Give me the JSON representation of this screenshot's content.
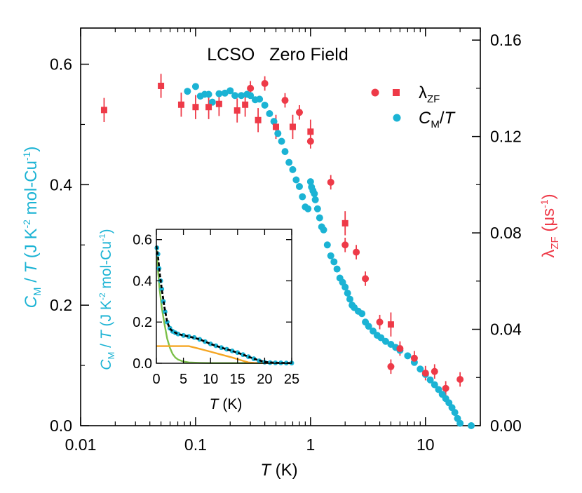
{
  "chart_data": [
    {
      "type": "scatter",
      "title": "LCSO   Zero Field",
      "xscale": "log",
      "xlim": [
        0.01,
        30
      ],
      "x_ticks": [
        0.01,
        0.1,
        1,
        10
      ],
      "x_tick_labels": [
        "0.01",
        "0.1",
        "1",
        "10"
      ],
      "xlabel_italic": "T",
      "xlabel_unit": " (K)",
      "ylim": [
        0,
        0.66
      ],
      "y_ticks": [
        0.0,
        0.2,
        0.4,
        0.6
      ],
      "y_tick_labels": [
        "0.0",
        "0.2",
        "0.4",
        "0.6"
      ],
      "ylabel": "CM / T (J K-2 mol-Cu-1)",
      "y2lim": [
        0,
        0.165
      ],
      "y2_ticks": [
        0,
        0.04,
        0.08,
        0.12,
        0.16
      ],
      "y2_tick_labels": [
        "0.00",
        "0.04",
        "0.08",
        "0.12",
        "0.16"
      ],
      "y2label": "λZF (μs-1)",
      "legend_position": "top-right",
      "legend": [
        "λZF",
        "CM/T"
      ],
      "series": [
        {
          "name": "λZF (circles)",
          "color": "#ee3a48",
          "marker": "circle",
          "axis": "right",
          "x": [
            0.3,
            0.4,
            0.6,
            0.8,
            1.0,
            1.5,
            2.0,
            2.5,
            3.0,
            4.0,
            5.0,
            6.0,
            8.0,
            10.0,
            12.0,
            15.0,
            20.0
          ],
          "y": [
            0.14,
            0.142,
            0.135,
            0.13,
            0.118,
            0.101,
            0.075,
            0.072,
            0.061,
            0.043,
            0.0245,
            0.032,
            0.028,
            0.0218,
            0.0225,
            0.0155,
            0.0192
          ],
          "yerr": [
            0.003,
            0.003,
            0.003,
            0.003,
            0.003,
            0.003,
            0.003,
            0.003,
            0.003,
            0.003,
            0.003,
            0.003,
            0.003,
            0.003,
            0.003,
            0.003,
            0.003
          ]
        },
        {
          "name": "λZF (squares)",
          "color": "#ee3a48",
          "marker": "square",
          "axis": "right",
          "x": [
            0.016,
            0.05,
            0.075,
            0.1,
            0.13,
            0.16,
            0.23,
            0.27,
            0.35,
            0.5,
            0.7,
            1.0,
            2.0,
            5.0
          ],
          "y": [
            0.131,
            0.141,
            0.1332,
            0.1322,
            0.1322,
            0.1335,
            0.1308,
            0.1332,
            0.1268,
            0.124,
            0.124,
            0.122,
            0.084,
            0.042
          ],
          "yerr": [
            0.005,
            0.005,
            0.005,
            0.005,
            0.005,
            0.005,
            0.005,
            0.005,
            0.005,
            0.005,
            0.005,
            0.005,
            0.005,
            0.005
          ]
        },
        {
          "name": "CM/T",
          "color": "#1bb3d4",
          "marker": "circle",
          "axis": "left",
          "x": [
            0.085,
            0.1,
            0.11,
            0.12,
            0.13,
            0.14,
            0.16,
            0.18,
            0.2,
            0.22,
            0.25,
            0.28,
            0.3,
            0.33,
            0.36,
            0.4,
            0.44,
            0.48,
            0.52,
            0.56,
            0.6,
            0.65,
            0.7,
            0.75,
            0.8,
            0.85,
            0.9,
            0.95,
            1.0,
            1.02,
            1.05,
            1.08,
            1.1,
            1.15,
            1.2,
            1.25,
            1.3,
            1.4,
            1.5,
            1.6,
            1.7,
            1.8,
            1.9,
            2.0,
            2.1,
            2.2,
            2.3,
            2.4,
            2.6,
            2.8,
            3.0,
            3.2,
            3.5,
            3.8,
            4.1,
            4.5,
            5.0,
            5.5,
            6.0,
            7.0,
            8.0,
            9.0,
            10.0,
            11.0,
            12.0,
            13.0,
            14.0,
            15.0,
            16.0,
            17.0,
            18.0,
            19.0,
            20.0,
            25.0
          ],
          "y": [
            0.555,
            0.563,
            0.547,
            0.55,
            0.55,
            0.537,
            0.551,
            0.552,
            0.556,
            0.548,
            0.548,
            0.55,
            0.548,
            0.541,
            0.542,
            0.532,
            0.518,
            0.505,
            0.485,
            0.472,
            0.455,
            0.437,
            0.425,
            0.408,
            0.397,
            0.38,
            0.363,
            0.36,
            0.405,
            0.396,
            0.39,
            0.385,
            0.375,
            0.36,
            0.345,
            0.33,
            0.325,
            0.3,
            0.282,
            0.272,
            0.26,
            0.245,
            0.238,
            0.23,
            0.22,
            0.21,
            0.2,
            0.196,
            0.19,
            0.186,
            0.172,
            0.165,
            0.157,
            0.15,
            0.146,
            0.14,
            0.135,
            0.13,
            0.125,
            0.116,
            0.105,
            0.094,
            0.085,
            0.076,
            0.068,
            0.06,
            0.052,
            0.045,
            0.038,
            0.03,
            0.022,
            0.012,
            0.004,
            0.0
          ]
        }
      ]
    },
    {
      "type": "line",
      "role": "inset",
      "xlim": [
        0,
        25
      ],
      "x_ticks": [
        0,
        5,
        10,
        15,
        20,
        25
      ],
      "x_tick_labels": [
        "0",
        "5",
        "10",
        "15",
        "20",
        "25"
      ],
      "xlabel_italic": "T",
      "xlabel_unit": " (K)",
      "ylim": [
        0,
        0.65
      ],
      "y_ticks": [
        0.0,
        0.2,
        0.4,
        0.6
      ],
      "y_tick_labels": [
        "0.0",
        "0.2",
        "0.4",
        "0.6"
      ],
      "ylabel": "CM / T (J K-2 mol-Cu-1)",
      "series": [
        {
          "name": "data",
          "color": "#1bb3d4",
          "marker": "circle",
          "x": [
            0.1,
            0.3,
            0.5,
            0.8,
            1.0,
            1.3,
            1.6,
            2.0,
            2.5,
            3.0,
            3.5,
            4.0,
            5.0,
            6.0,
            7.0,
            8.0,
            9.0,
            10.0,
            11.0,
            12.0,
            13.0,
            14.0,
            15.0,
            16.0,
            17.0,
            18.0,
            19.0,
            20.0,
            21.0,
            22.0,
            23.0,
            24.0,
            25.0
          ],
          "y": [
            0.56,
            0.53,
            0.46,
            0.4,
            0.36,
            0.3,
            0.25,
            0.2,
            0.17,
            0.155,
            0.148,
            0.142,
            0.135,
            0.13,
            0.125,
            0.116,
            0.105,
            0.094,
            0.085,
            0.076,
            0.068,
            0.06,
            0.052,
            0.042,
            0.032,
            0.022,
            0.012,
            0.005,
            0.003,
            0.002,
            0.002,
            0.001,
            0.001
          ]
        },
        {
          "name": "total fit",
          "color": "#000000",
          "style": "dashed",
          "x": [
            0,
            0.3,
            0.6,
            1.0,
            1.5,
            2.0,
            2.5,
            3.0,
            4.0,
            5.0,
            6.0,
            8.0,
            10.0,
            12.0,
            14.0,
            16.0,
            18.0,
            20.0,
            22.0,
            25.0
          ],
          "y": [
            0.57,
            0.52,
            0.44,
            0.36,
            0.27,
            0.2,
            0.168,
            0.155,
            0.142,
            0.135,
            0.13,
            0.116,
            0.094,
            0.076,
            0.06,
            0.042,
            0.022,
            0.006,
            0.002,
            0.001
          ]
        },
        {
          "name": "green component",
          "color": "#7cc04a",
          "x": [
            0,
            0.3,
            0.6,
            1.0,
            1.5,
            2.0,
            2.5,
            3.0,
            3.5,
            4.0,
            5.0,
            6.0,
            8.0,
            10.0,
            15.0,
            20.0,
            25.0
          ],
          "y": [
            0.57,
            0.45,
            0.36,
            0.27,
            0.19,
            0.12,
            0.075,
            0.045,
            0.028,
            0.018,
            0.008,
            0.004,
            0.002,
            0.001,
            0.001,
            0.001,
            0.0
          ],
          "tail_color": "#000000"
        },
        {
          "name": "orange component",
          "color": "#f5a623",
          "x": [
            0,
            6.0,
            8.0,
            10.0,
            12.0,
            14.0,
            16.0,
            17.0,
            18.0,
            20.0,
            25.0
          ],
          "y": [
            0.083,
            0.083,
            0.07,
            0.056,
            0.042,
            0.028,
            0.012,
            0.004,
            0.002,
            0.001,
            0.0
          ]
        }
      ]
    }
  ]
}
